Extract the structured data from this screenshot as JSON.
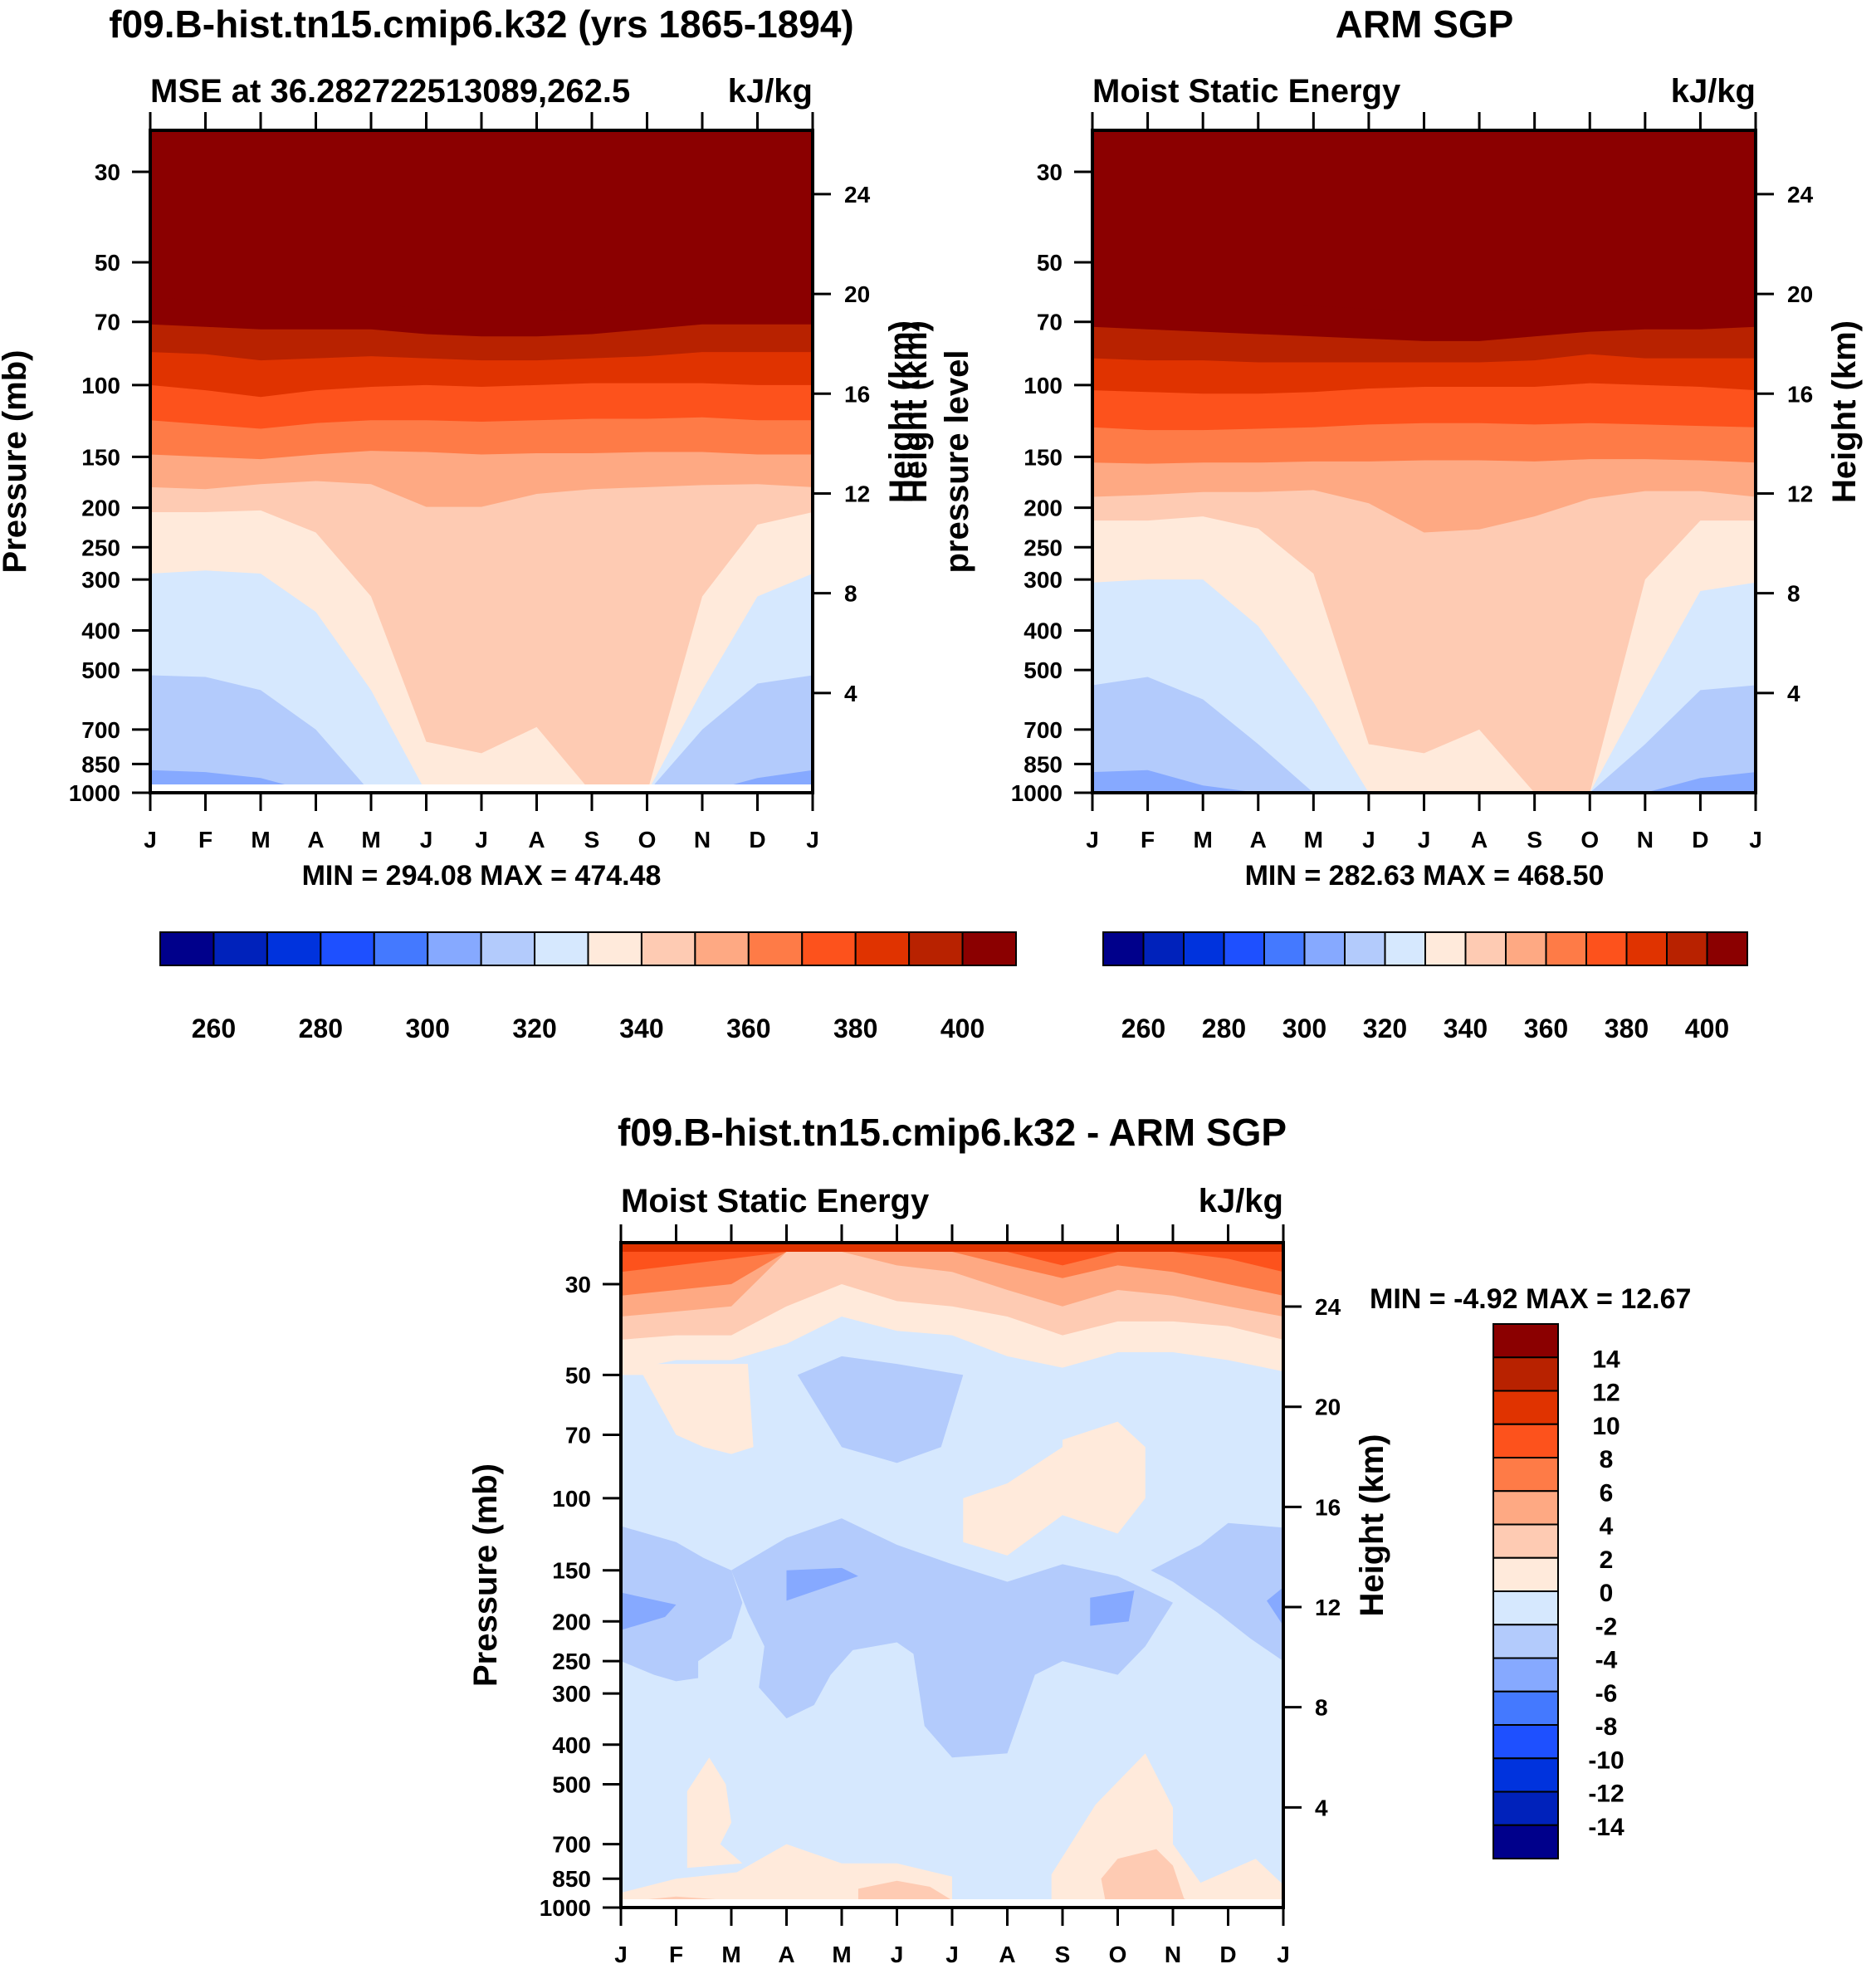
{
  "chart_data": [
    {
      "type": "heatmap",
      "subtype": "filled-contour",
      "title": "f09.B-hist.tn15.cmip6.k32 (yrs 1865-1894)",
      "left_string": "MSE at 36.282722513089,262.5",
      "right_string": "kJ/kg",
      "ylabel": "Pressure (mb)",
      "ylabel_right": "Height (km)",
      "xlabel": "",
      "x_ticks": [
        "J",
        "F",
        "M",
        "A",
        "M",
        "J",
        "J",
        "A",
        "S",
        "O",
        "N",
        "D",
        "J"
      ],
      "y_ticks": [
        30,
        50,
        70,
        100,
        150,
        200,
        250,
        300,
        400,
        500,
        700,
        850,
        1000
      ],
      "y_right_ticks": [
        4,
        8,
        12,
        16,
        20,
        24
      ],
      "ylim_mb": [
        1000,
        25
      ],
      "yscale": "log",
      "stats": "MIN = 294.08 MAX = 474.48",
      "colorbar": {
        "orientation": "horizontal",
        "levels": [
          250,
          260,
          270,
          280,
          290,
          300,
          310,
          320,
          330,
          340,
          350,
          360,
          370,
          380,
          390,
          400,
          410
        ],
        "labels": [
          "260",
          "280",
          "300",
          "320",
          "340",
          "360",
          "380",
          "400"
        ]
      },
      "band_tops_mb": {
        "months": [
          "J",
          "F",
          "M",
          "A",
          "M",
          "J",
          "J",
          "A",
          "S",
          "O",
          "N",
          "D",
          "J"
        ],
        "300-310": [
          880,
          890,
          920,
          1000,
          1000,
          1000,
          1000,
          1000,
          1000,
          1000,
          1000,
          920,
          880
        ],
        "310-320": [
          515,
          520,
          560,
          700,
          1000,
          1000,
          1000,
          1000,
          1000,
          1000,
          700,
          540,
          515
        ],
        "320-330": [
          290,
          285,
          290,
          360,
          560,
          1000,
          1000,
          1000,
          1000,
          1000,
          560,
          330,
          290
        ],
        "330-340": [
          205,
          205,
          203,
          230,
          330,
          750,
          800,
          690,
          1000,
          1000,
          330,
          220,
          205
        ],
        "340-350": [
          178,
          180,
          175,
          172,
          175,
          199,
          199,
          185,
          180,
          178,
          176,
          175,
          178
        ],
        "350-360": [
          148,
          150,
          152,
          148,
          145,
          146,
          148,
          147,
          147,
          146,
          146,
          148,
          148
        ],
        "360-370": [
          122,
          125,
          128,
          124,
          122,
          122,
          123,
          122,
          121,
          121,
          120,
          122,
          122
        ],
        "370-380": [
          100,
          103,
          107,
          103,
          101,
          100,
          101,
          100,
          99,
          99,
          99,
          100,
          100
        ],
        "380-390": [
          83,
          84,
          87,
          86,
          85,
          86,
          87,
          87,
          86,
          85,
          83,
          83,
          83
        ],
        "390-400": [
          71,
          72,
          73,
          73,
          73,
          75,
          76,
          76,
          75,
          73,
          71,
          71,
          71
        ],
        "400-410": [
          61,
          62,
          63,
          63,
          63,
          65,
          66,
          66,
          65,
          63,
          61,
          61,
          61
        ]
      }
    },
    {
      "type": "heatmap",
      "subtype": "filled-contour",
      "title": "ARM SGP",
      "left_string": "Moist Static Energy",
      "right_string": "kJ/kg",
      "ylabel": "pressure level",
      "ylabel_right": "Height (km)",
      "xlabel": "",
      "x_ticks": [
        "J",
        "F",
        "M",
        "A",
        "M",
        "J",
        "J",
        "A",
        "S",
        "O",
        "N",
        "D",
        "J"
      ],
      "y_ticks": [
        30,
        50,
        70,
        100,
        150,
        200,
        250,
        300,
        400,
        500,
        700,
        850,
        1000
      ],
      "y_right_ticks": [
        4,
        8,
        12,
        16,
        20,
        24
      ],
      "ylim_mb": [
        1000,
        25
      ],
      "yscale": "log",
      "stats": "MIN = 282.63 MAX = 468.50",
      "colorbar": {
        "orientation": "horizontal",
        "levels": [
          250,
          260,
          270,
          280,
          290,
          300,
          310,
          320,
          330,
          340,
          350,
          360,
          370,
          380,
          390,
          400,
          410
        ],
        "labels": [
          "260",
          "280",
          "300",
          "320",
          "340",
          "360",
          "380",
          "400"
        ]
      },
      "band_tops_mb": {
        "months": [
          "J",
          "F",
          "M",
          "A",
          "M",
          "J",
          "J",
          "A",
          "S",
          "O",
          "N",
          "D",
          "J"
        ],
        "290-300": [
          1000,
          1000,
          1000,
          1000,
          1000,
          1000,
          1000,
          1000,
          1000,
          1000,
          1000,
          1000,
          1000
        ],
        "300-310": [
          890,
          880,
          960,
          1000,
          1000,
          1000,
          1000,
          1000,
          1000,
          1000,
          1000,
          920,
          890
        ],
        "310-320": [
          545,
          520,
          590,
          760,
          1000,
          1000,
          1000,
          1000,
          1000,
          1000,
          760,
          560,
          545
        ],
        "320-330": [
          305,
          300,
          300,
          390,
          600,
          1000,
          1000,
          1000,
          1000,
          1000,
          560,
          320,
          305
        ],
        "330-340": [
          215,
          215,
          210,
          225,
          290,
          760,
          800,
          700,
          1000,
          1000,
          300,
          215,
          215
        ],
        "340-350": [
          188,
          186,
          183,
          183,
          181,
          195,
          230,
          226,
          210,
          190,
          182,
          182,
          188
        ],
        "350-360": [
          155,
          156,
          155,
          155,
          154,
          154,
          153,
          153,
          154,
          152,
          152,
          153,
          155
        ],
        "360-370": [
          127,
          129,
          129,
          128,
          127,
          125,
          124,
          124,
          125,
          124,
          125,
          126,
          127
        ],
        "370-380": [
          103,
          104,
          105,
          105,
          104,
          102,
          101,
          101,
          101,
          99,
          100,
          101,
          103
        ],
        "380-390": [
          86,
          87,
          87,
          88,
          88,
          88,
          88,
          88,
          87,
          84,
          86,
          86,
          86
        ],
        "390-400": [
          72,
          73,
          74,
          75,
          76,
          77,
          78,
          78,
          76,
          74,
          73,
          73,
          72
        ],
        "400-410": [
          61,
          62,
          63,
          63,
          64,
          65,
          66,
          66,
          65,
          63,
          62,
          62,
          61
        ]
      }
    },
    {
      "type": "heatmap",
      "subtype": "filled-contour",
      "title": "f09.B-hist.tn15.cmip6.k32 - ARM SGP",
      "left_string": "Moist Static Energy",
      "right_string": "kJ/kg",
      "ylabel": "Pressure (mb)",
      "ylabel_right": "Height (km)",
      "xlabel": "",
      "x_ticks": [
        "J",
        "F",
        "M",
        "A",
        "M",
        "J",
        "J",
        "A",
        "S",
        "O",
        "N",
        "D",
        "J"
      ],
      "y_ticks": [
        30,
        50,
        70,
        100,
        150,
        200,
        250,
        300,
        400,
        500,
        700,
        850,
        1000
      ],
      "y_right_ticks": [
        4,
        8,
        12,
        16,
        20,
        24
      ],
      "ylim_mb": [
        1000,
        25
      ],
      "yscale": "log",
      "stats": "MIN =  -4.92 MAX =  12.67",
      "colorbar": {
        "orientation": "vertical",
        "levels": [
          -16,
          -14,
          -12,
          -10,
          -8,
          -6,
          -4,
          -2,
          0,
          2,
          4,
          6,
          8,
          10,
          12,
          14,
          16
        ],
        "labels": [
          "14",
          "12",
          "10",
          "8",
          "6",
          "4",
          "2",
          "0",
          "-2",
          "-4",
          "-6",
          "-8",
          "-10",
          "-12",
          "-14"
        ]
      },
      "background_band": "-2-0",
      "band_profile_mb": {
        "months": [
          "J",
          "F",
          "M",
          "A",
          "M",
          "J",
          "J",
          "A",
          "S",
          "O",
          "N",
          "D",
          "J"
        ],
        "0-2_top": [
          49,
          46,
          46,
          42,
          36,
          39,
          40,
          45,
          48,
          44,
          44,
          46,
          49
        ],
        "2-4_top": [
          41,
          40,
          40,
          34,
          30,
          33,
          34,
          36,
          40,
          37,
          37,
          38,
          41
        ],
        "4-6_top": [
          36,
          35,
          34,
          25,
          25,
          27,
          28,
          31,
          34,
          31,
          32,
          34,
          36
        ],
        "6-8_top": [
          32,
          31,
          30,
          25,
          25,
          25,
          25,
          27,
          29,
          27,
          28,
          30,
          32
        ],
        "8-10_top": [
          28,
          27,
          26,
          25,
          25,
          25,
          25,
          25,
          27,
          25,
          25,
          26,
          28
        ],
        "10-12_top": [
          25,
          25,
          25,
          25,
          25,
          25,
          25,
          25,
          25,
          25,
          25,
          25,
          25
        ]
      },
      "notable_regions": [
        {
          "band": "0-2",
          "approx_months": "J-M",
          "approx_mb": [
            50,
            80
          ]
        },
        {
          "band": "-4--2",
          "approx_months": "A-J",
          "approx_mb": [
            50,
            85
          ]
        },
        {
          "band": "0-2",
          "approx_months": "J-O",
          "approx_mb": [
            70,
            140
          ]
        },
        {
          "band": "-4--2",
          "approx_months": "J-D",
          "approx_mb": [
            130,
            400
          ]
        },
        {
          "band": "-6--4",
          "approx_months": "J,A,S,D",
          "approx_mb": [
            150,
            200
          ]
        },
        {
          "band": "0-2",
          "approx_months": "F,S",
          "approx_mb": [
            450,
            1000
          ]
        },
        {
          "band": "2-4",
          "approx_months": "J,S",
          "approx_mb": [
            700,
            950
          ]
        }
      ]
    }
  ],
  "colors": {
    "bands_blue_to_red": [
      "#00008b",
      "#0022bb",
      "#0033dd",
      "#1e50ff",
      "#4479ff",
      "#86a9ff",
      "#b3cbfc",
      "#d6e8fe",
      "#ffeadb",
      "#fecbb3",
      "#fea983",
      "#fe7b47",
      "#fd521c",
      "#e03300",
      "#b82200",
      "#8b0000"
    ]
  }
}
